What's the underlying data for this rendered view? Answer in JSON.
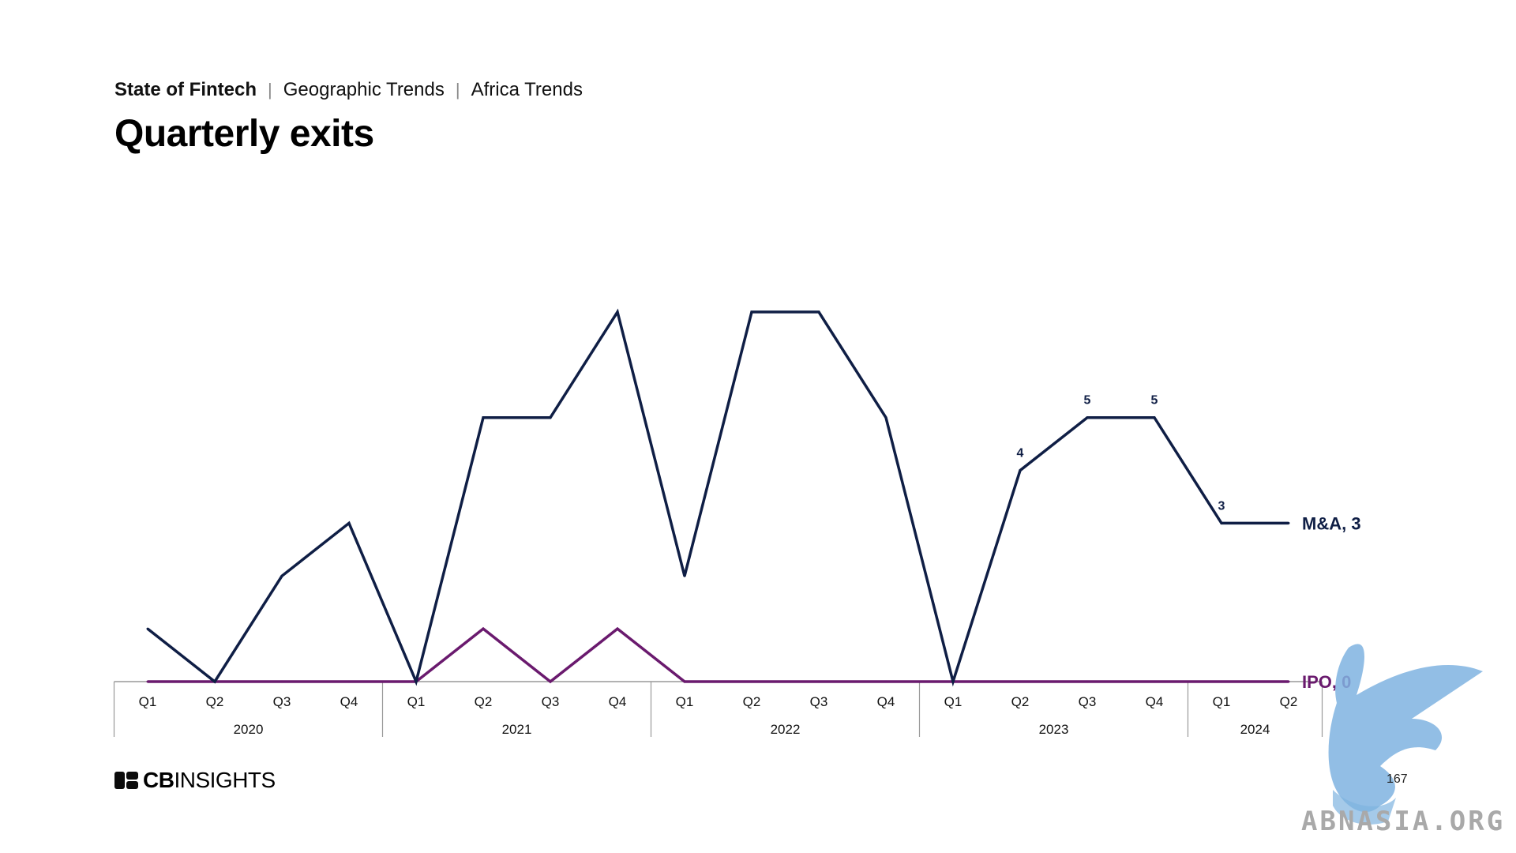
{
  "header": {
    "breadcrumb": [
      "State of Fintech",
      "Geographic Trends",
      "Africa Trends"
    ],
    "title": "Quarterly exits"
  },
  "footer": {
    "logo_bold": "CB",
    "logo_light": "INSIGHTS",
    "page_number": "167",
    "watermark_text": "ABNASIA.ORG"
  },
  "colors": {
    "ma": "#0f1e45",
    "ipo": "#6a1a6e",
    "axis": "#999999"
  },
  "chart_data": {
    "type": "line",
    "title": "Quarterly exits",
    "x": [
      "Q1",
      "Q2",
      "Q3",
      "Q4",
      "Q1",
      "Q2",
      "Q3",
      "Q4",
      "Q1",
      "Q2",
      "Q3",
      "Q4",
      "Q1",
      "Q2",
      "Q3",
      "Q4",
      "Q1",
      "Q2"
    ],
    "years": [
      {
        "label": "2020",
        "quarters": 4
      },
      {
        "label": "2021",
        "quarters": 4
      },
      {
        "label": "2022",
        "quarters": 4
      },
      {
        "label": "2023",
        "quarters": 4
      },
      {
        "label": "2024",
        "quarters": 2
      }
    ],
    "ylim": [
      0,
      7
    ],
    "grid": false,
    "series": [
      {
        "name": "M&A",
        "end_label": "M&A, 3",
        "values": [
          1,
          0,
          2,
          3,
          0,
          5,
          5,
          7,
          2,
          7,
          7,
          5,
          0,
          4,
          5,
          5,
          3,
          3
        ],
        "data_labels": [
          "",
          "",
          "",
          "",
          "",
          "",
          "",
          "",
          "",
          "",
          "",
          "",
          "",
          "4",
          "5",
          "5",
          "3",
          ""
        ]
      },
      {
        "name": "IPO",
        "end_label": "IPO, 0",
        "values": [
          0,
          0,
          0,
          0,
          0,
          1,
          0,
          1,
          0,
          0,
          0,
          0,
          0,
          0,
          0,
          0,
          0,
          0
        ],
        "data_labels": []
      }
    ]
  }
}
